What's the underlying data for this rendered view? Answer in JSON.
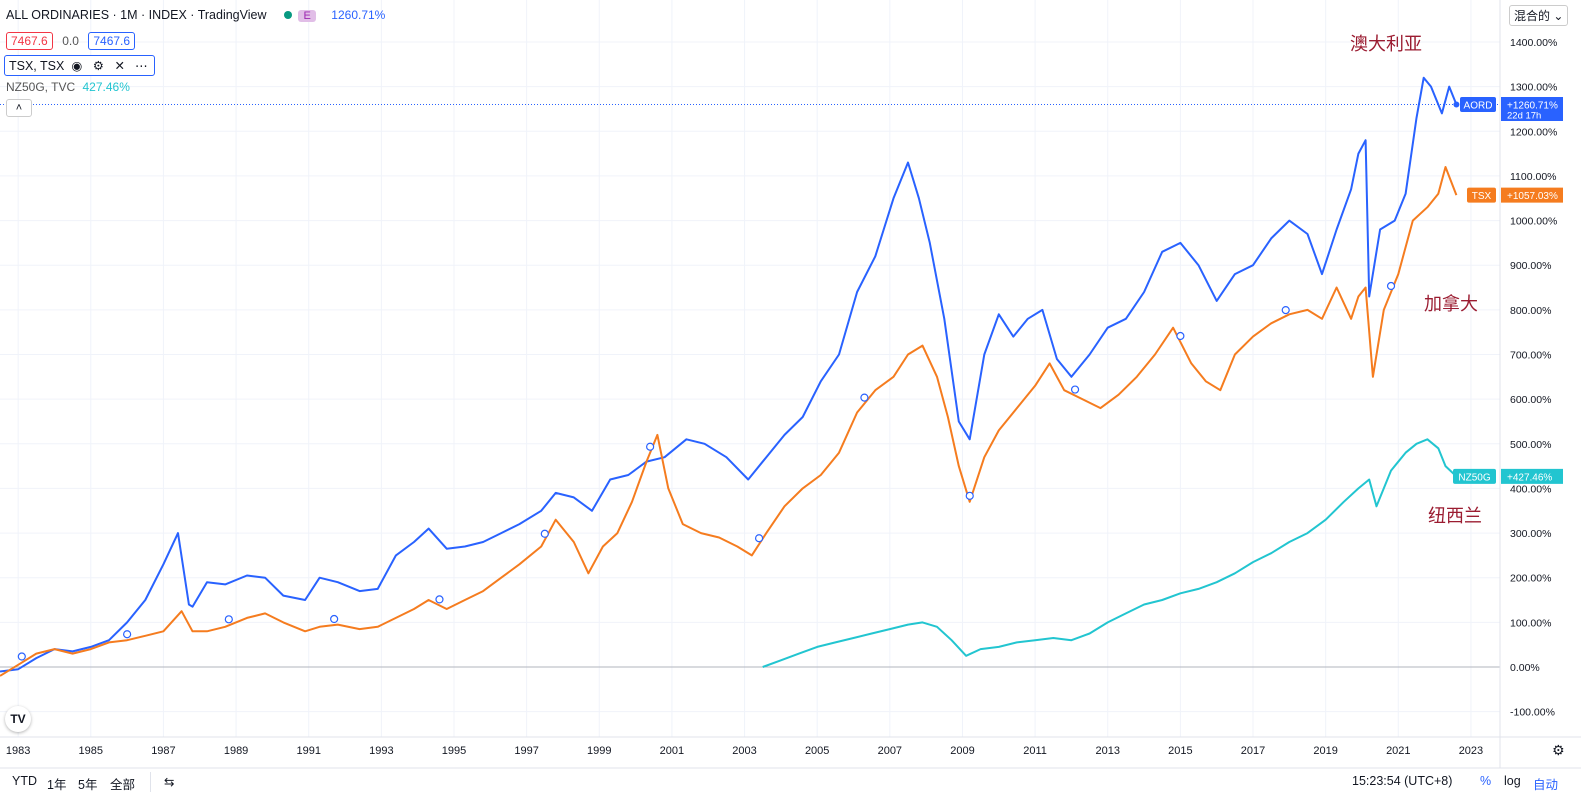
{
  "header": {
    "title": "ALL ORDINARIES · 1M · INDEX · TradingView",
    "badge": "E",
    "main_pct": "1260.71%",
    "price_box_1": "7467.6",
    "change": "0.0",
    "price_box_2": "7467.6",
    "series2_label": "TSX, TSX",
    "series3_label": "NZ50G, TVC",
    "series3_pct": "427.46%"
  },
  "top_right_menu": "混合的",
  "annotations": {
    "australia": "澳大利亚",
    "canada": "加拿大",
    "new_zealand": "纽西兰"
  },
  "price_labels": [
    {
      "tag": "AORD",
      "value": "+1260.71%",
      "sub": "22d 17h",
      "color": "#2962ff"
    },
    {
      "tag": "TSX",
      "value": "+1057.03%",
      "color": "#f57c1f"
    },
    {
      "tag": "NZ50G",
      "value": "+427.46%",
      "color": "#22c5d0"
    }
  ],
  "bottom_toolbar": {
    "ranges": [
      "YTD",
      "1年",
      "5年",
      "全部"
    ],
    "time": "15:23:54 (UTC+8)",
    "percent": "%",
    "log": "log",
    "auto": "自动"
  },
  "chart_data": {
    "type": "line",
    "ylabel": "",
    "xlabel": "",
    "ylim": [
      -120,
      1450
    ],
    "xlim": [
      1982.5,
      2023.8
    ],
    "y_ticks": [
      -100,
      0,
      100,
      200,
      300,
      400,
      500,
      600,
      700,
      800,
      900,
      1000,
      1100,
      1200,
      1300,
      1400
    ],
    "y_tick_labels": [
      "-100.00%",
      "0.00%",
      "100.00%",
      "200.00%",
      "300.00%",
      "400.00%",
      "500.00%",
      "600.00%",
      "700.00%",
      "800.00%",
      "900.00%",
      "1000.00%",
      "1100.00%",
      "1200.00%",
      "1300.00%",
      "1400.00%"
    ],
    "x_ticks": [
      1983,
      1985,
      1987,
      1989,
      1991,
      1993,
      1995,
      1997,
      1999,
      2001,
      2003,
      2005,
      2007,
      2009,
      2011,
      2013,
      2015,
      2017,
      2019,
      2021,
      2023
    ],
    "x_tick_labels": [
      "1983",
      "1985",
      "1987",
      "1989",
      "1991",
      "1993",
      "1995",
      "1997",
      "1999",
      "2001",
      "2003",
      "2005",
      "2007",
      "2009",
      "2011",
      "2013",
      "2015",
      "2017",
      "2019",
      "2021",
      "2023"
    ],
    "grid": true,
    "series": [
      {
        "name": "AORD",
        "color": "#2962ff",
        "x": [
          1982.5,
          1983,
          1983.5,
          1984,
          1984.5,
          1985,
          1985.5,
          1986,
          1986.5,
          1987,
          1987.4,
          1987.7,
          1987.8,
          1988.2,
          1988.7,
          1989.3,
          1989.8,
          1990.3,
          1990.9,
          1991.3,
          1991.8,
          1992.4,
          1992.9,
          1993.4,
          1993.9,
          1994.3,
          1994.8,
          1995.3,
          1995.8,
          1996.3,
          1996.8,
          1997.4,
          1997.8,
          1998.3,
          1998.8,
          1999.3,
          1999.8,
          2000.3,
          2000.8,
          2001.4,
          2001.9,
          2002.5,
          2003.1,
          2003.6,
          2004.1,
          2004.6,
          2005.1,
          2005.6,
          2006.1,
          2006.6,
          2007.1,
          2007.5,
          2007.8,
          2008.1,
          2008.5,
          2008.9,
          2009.2,
          2009.6,
          2010.0,
          2010.4,
          2010.8,
          2011.2,
          2011.6,
          2012.0,
          2012.5,
          2013.0,
          2013.5,
          2014.0,
          2014.5,
          2015.0,
          2015.5,
          2016.0,
          2016.5,
          2017.0,
          2017.5,
          2018.0,
          2018.5,
          2018.9,
          2019.3,
          2019.7,
          2019.9,
          2020.1,
          2020.2,
          2020.5,
          2020.9,
          2021.2,
          2021.5,
          2021.7,
          2021.9,
          2022.2,
          2022.4,
          2022.6
        ],
        "y": [
          -10,
          -5,
          20,
          40,
          35,
          45,
          60,
          100,
          150,
          230,
          300,
          140,
          135,
          190,
          185,
          205,
          200,
          160,
          150,
          200,
          190,
          170,
          175,
          250,
          280,
          310,
          265,
          270,
          280,
          300,
          320,
          350,
          390,
          380,
          350,
          420,
          430,
          460,
          470,
          510,
          500,
          470,
          420,
          470,
          520,
          560,
          640,
          700,
          840,
          920,
          1050,
          1130,
          1050,
          950,
          780,
          550,
          510,
          700,
          790,
          740,
          780,
          800,
          690,
          650,
          700,
          760,
          780,
          840,
          930,
          950,
          900,
          820,
          880,
          900,
          960,
          1000,
          970,
          880,
          980,
          1070,
          1150,
          1180,
          830,
          980,
          1000,
          1060,
          1230,
          1320,
          1300,
          1240,
          1300,
          1260
        ]
      },
      {
        "name": "TSX",
        "color": "#f57c1f",
        "x": [
          1982.5,
          1983,
          1983.5,
          1984,
          1984.5,
          1985,
          1985.5,
          1986,
          1986.5,
          1987,
          1987.5,
          1987.8,
          1988.2,
          1988.7,
          1989.3,
          1989.8,
          1990.3,
          1990.9,
          1991.3,
          1991.8,
          1992.4,
          1992.9,
          1993.4,
          1993.9,
          1994.3,
          1994.8,
          1995.3,
          1995.8,
          1996.3,
          1996.8,
          1997.4,
          1997.8,
          1998.3,
          1998.7,
          1999.1,
          1999.5,
          1999.9,
          2000.3,
          2000.6,
          2000.9,
          2001.3,
          2001.8,
          2002.3,
          2002.8,
          2003.2,
          2003.6,
          2004.1,
          2004.6,
          2005.1,
          2005.6,
          2006.1,
          2006.6,
          2007.1,
          2007.5,
          2007.9,
          2008.3,
          2008.6,
          2008.9,
          2009.2,
          2009.6,
          2010.0,
          2010.5,
          2011.0,
          2011.4,
          2011.8,
          2012.3,
          2012.8,
          2013.3,
          2013.8,
          2014.3,
          2014.8,
          2015.3,
          2015.7,
          2016.1,
          2016.5,
          2017.0,
          2017.5,
          2018.0,
          2018.5,
          2018.9,
          2019.3,
          2019.7,
          2019.9,
          2020.1,
          2020.3,
          2020.6,
          2021.0,
          2021.4,
          2021.8,
          2022.1,
          2022.3,
          2022.6
        ],
        "y": [
          -20,
          5,
          30,
          40,
          30,
          40,
          55,
          60,
          70,
          80,
          125,
          80,
          80,
          90,
          110,
          120,
          100,
          80,
          90,
          95,
          85,
          90,
          110,
          130,
          150,
          130,
          150,
          170,
          200,
          230,
          270,
          330,
          280,
          210,
          270,
          300,
          370,
          460,
          520,
          400,
          320,
          300,
          290,
          270,
          250,
          300,
          360,
          400,
          430,
          480,
          570,
          620,
          650,
          700,
          720,
          650,
          560,
          450,
          370,
          470,
          530,
          580,
          630,
          680,
          620,
          600,
          580,
          610,
          650,
          700,
          760,
          680,
          640,
          620,
          700,
          740,
          770,
          790,
          800,
          780,
          850,
          780,
          830,
          850,
          650,
          800,
          880,
          1000,
          1030,
          1060,
          1120,
          1057
        ]
      },
      {
        "name": "NZ50G",
        "color": "#22c5d0",
        "x": [
          2003.5,
          2004,
          2004.5,
          2005,
          2005.5,
          2006,
          2006.5,
          2007,
          2007.5,
          2007.9,
          2008.3,
          2008.7,
          2009.1,
          2009.5,
          2010,
          2010.5,
          2011,
          2011.5,
          2012,
          2012.5,
          2013,
          2013.5,
          2014,
          2014.5,
          2015,
          2015.5,
          2016,
          2016.5,
          2017,
          2017.5,
          2018,
          2018.5,
          2019,
          2019.5,
          2019.9,
          2020.2,
          2020.4,
          2020.8,
          2021.2,
          2021.5,
          2021.8,
          2022.1,
          2022.3,
          2022.6
        ],
        "y": [
          0,
          15,
          30,
          45,
          55,
          65,
          75,
          85,
          95,
          100,
          90,
          60,
          25,
          40,
          45,
          55,
          60,
          65,
          60,
          75,
          100,
          120,
          140,
          150,
          165,
          175,
          190,
          210,
          235,
          255,
          280,
          300,
          330,
          370,
          400,
          420,
          360,
          440,
          480,
          500,
          510,
          490,
          450,
          427
        ]
      }
    ],
    "markers": [
      {
        "series": "TSX",
        "x": [
          1983.1,
          1986,
          1988.8,
          1991.7,
          1994.6,
          1997.5,
          2000.4,
          2003.4,
          2006.3,
          2009.2,
          2012.1,
          2015,
          2017.9,
          2020.8
        ]
      }
    ]
  }
}
